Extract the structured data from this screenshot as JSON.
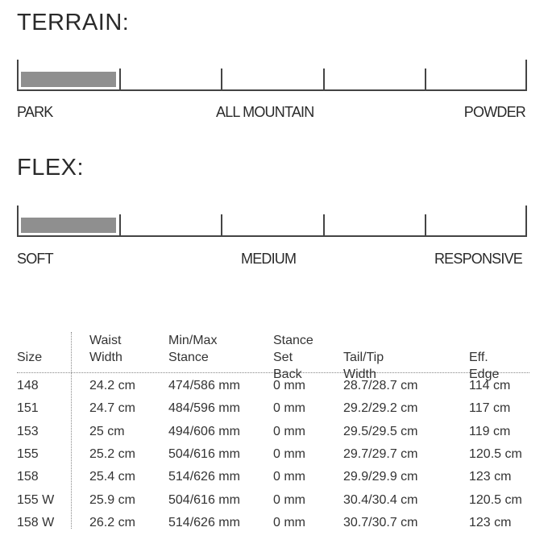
{
  "terrain": {
    "title": "TERRAIN:",
    "labels": [
      "PARK",
      "ALL MOUNTAIN",
      "POWDER"
    ],
    "fill_fraction": 0.2,
    "fill_color": "#8f8f8f"
  },
  "flex": {
    "title": "FLEX:",
    "labels": [
      "SOFT",
      "MEDIUM",
      "RESPONSIVE"
    ],
    "fill_fraction": 0.2,
    "fill_color": "#8f8f8f"
  },
  "table": {
    "headers": [
      "Size",
      "Waist\nWidth",
      "Min/Max\nStance",
      "Stance\nSet Back",
      "Tail/Tip Width",
      "Eff. Edge"
    ],
    "rows": [
      [
        "148",
        "24.2 cm",
        "474/586 mm",
        "0 mm",
        "28.7/28.7 cm",
        "114 cm"
      ],
      [
        "151",
        "24.7 cm",
        "484/596 mm",
        "0 mm",
        "29.2/29.2 cm",
        "117 cm"
      ],
      [
        "153",
        "25 cm",
        "494/606 mm",
        "0 mm",
        "29.5/29.5 cm",
        "119 cm"
      ],
      [
        "155",
        "25.2 cm",
        "504/616 mm",
        "0 mm",
        "29.7/29.7 cm",
        "120.5 cm"
      ],
      [
        "158",
        "25.4 cm",
        "514/626 mm",
        "0 mm",
        "29.9/29.9 cm",
        "123 cm"
      ],
      [
        "155 W",
        "25.9 cm",
        "504/616 mm",
        "0 mm",
        "30.4/30.4 cm",
        "120.5 cm"
      ],
      [
        "158 W",
        "26.2 cm",
        "514/626 mm",
        "0 mm",
        "30.7/30.7 cm",
        "123 cm"
      ]
    ]
  }
}
